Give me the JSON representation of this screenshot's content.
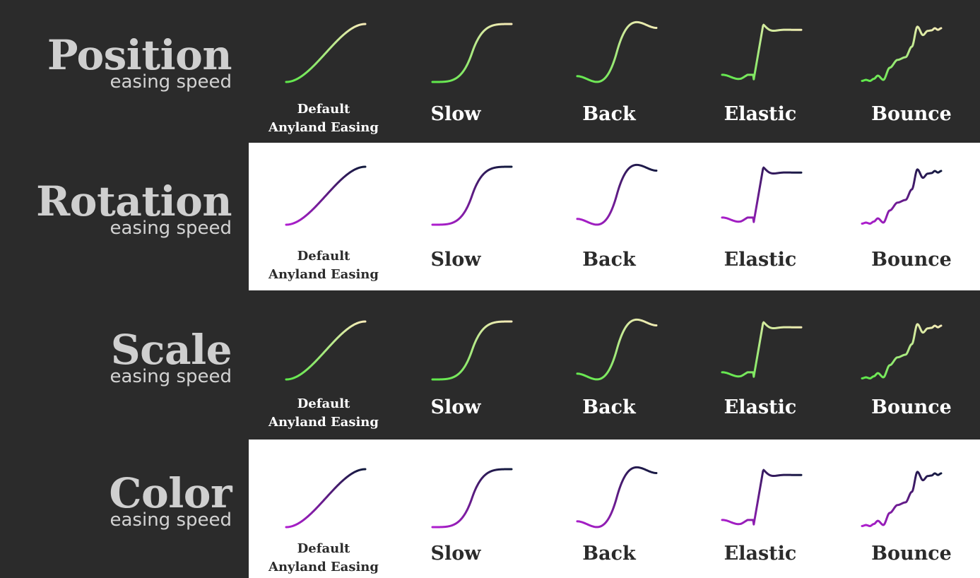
{
  "rows": [
    {
      "title": "Position",
      "subtitle": "easing speed",
      "theme": "dark"
    },
    {
      "title": "Rotation",
      "subtitle": "easing speed",
      "theme": "light"
    },
    {
      "title": "Scale",
      "subtitle": "easing speed",
      "theme": "dark"
    },
    {
      "title": "Color",
      "subtitle": "easing speed",
      "theme": "light"
    }
  ],
  "easings": [
    {
      "name": "Default Anyland Easing",
      "lines": [
        "Default",
        "Anyland Easing"
      ]
    },
    {
      "name": "Slow"
    },
    {
      "name": "Back"
    },
    {
      "name": "Elastic"
    },
    {
      "name": "Bounce"
    }
  ],
  "themes": {
    "dark": {
      "background": "#2b2b2b",
      "curve_start": "#5ee84a",
      "curve_end": "#f7ebb8",
      "text": "#ffffff"
    },
    "light": {
      "background": "#ffffff",
      "curve_start": "#b01ed0",
      "curve_end": "#101a3c",
      "text": "#2b2b2b"
    }
  },
  "sidebar_color": "#2b2b2b",
  "label_color": "#cfcfcf"
}
